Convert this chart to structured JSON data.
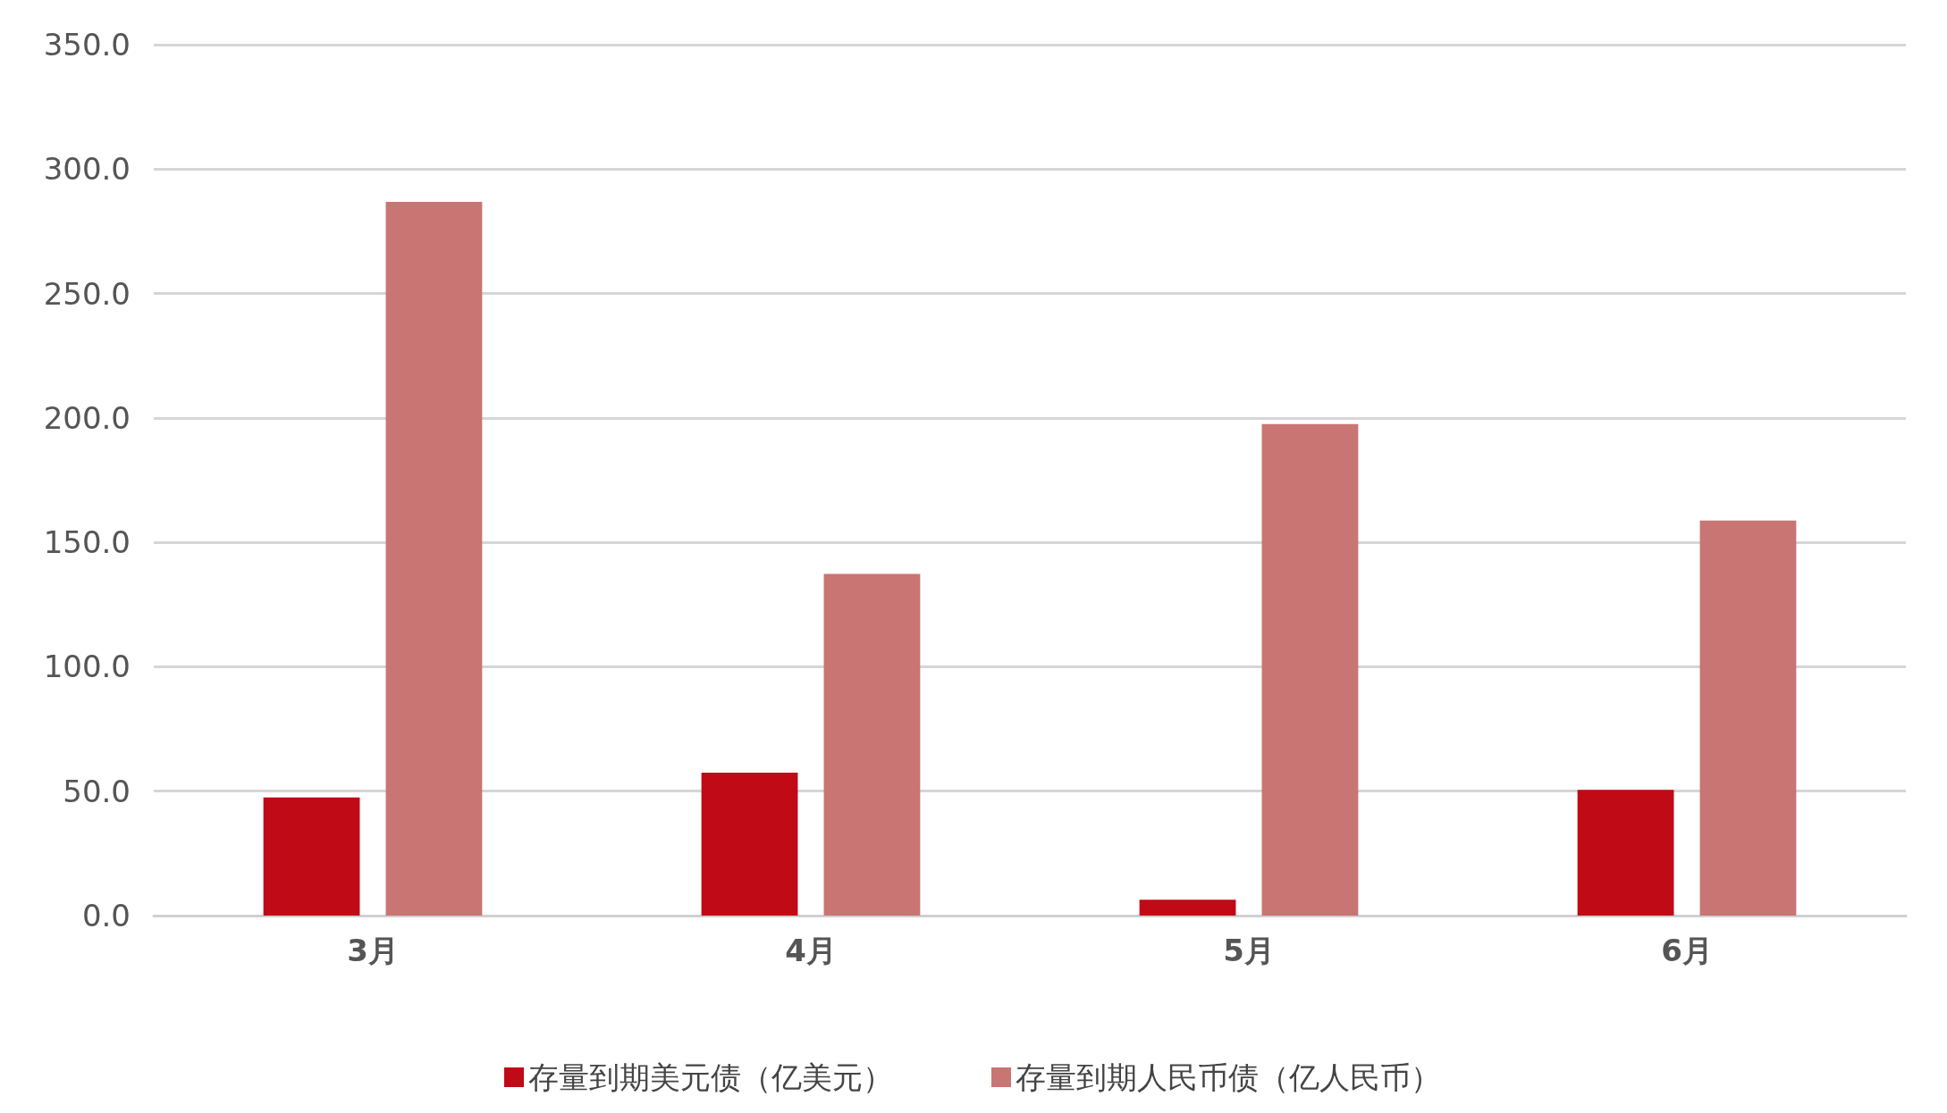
{
  "chart_data": {
    "type": "bar",
    "categories": [
      "3月",
      "4月",
      "5月",
      "6月"
    ],
    "series": [
      {
        "name": "存量到期美元债（亿美元）",
        "color": "#c00a16",
        "values": [
          47.5,
          57.4,
          6.4,
          50.5
        ]
      },
      {
        "name": "存量到期人民币债（亿人民币）",
        "color": "#c87574",
        "values": [
          286.8,
          137.3,
          197.5,
          158.8
        ]
      }
    ],
    "ylim": [
      0,
      350
    ],
    "yticks": [
      {
        "value": 0,
        "label": "0.0"
      },
      {
        "value": 50,
        "label": "50.0"
      },
      {
        "value": 100,
        "label": "100.0"
      },
      {
        "value": 150,
        "label": "150.0"
      },
      {
        "value": 200,
        "label": "200.0"
      },
      {
        "value": 250,
        "label": "250.0"
      },
      {
        "value": 300,
        "label": "300.0"
      },
      {
        "value": 350,
        "label": "350.0"
      }
    ],
    "grid": "y",
    "legend": "bottom"
  }
}
